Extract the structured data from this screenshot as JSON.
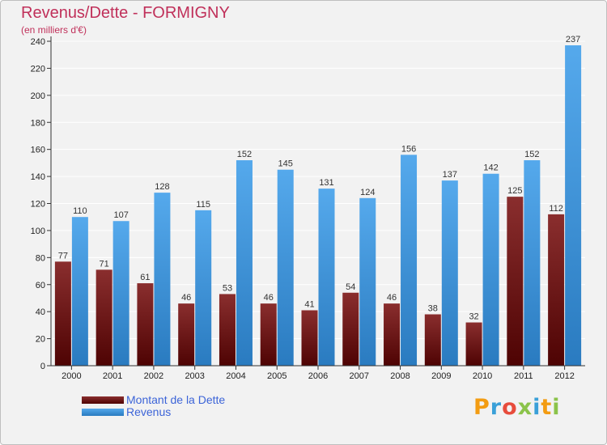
{
  "header": {
    "title": "Revenus/Dette - FORMIGNY",
    "subtitle": "(en milliers d'€)"
  },
  "chart_data": {
    "type": "bar",
    "title": "Revenus/Dette - FORMIGNY",
    "ylabel": "(en milliers d'€)",
    "xlabel": "",
    "ylim": [
      0,
      240
    ],
    "yticks": [
      0,
      20,
      40,
      60,
      80,
      100,
      120,
      140,
      160,
      180,
      200,
      220,
      240
    ],
    "grid": true,
    "legend_position": "bottom-left",
    "categories": [
      "2000",
      "2001",
      "2002",
      "2003",
      "2004",
      "2005",
      "2006",
      "2007",
      "2008",
      "2009",
      "2010",
      "2011",
      "2012"
    ],
    "series": [
      {
        "name": "Montant de la Dette",
        "color": "#6b0f0f",
        "values": [
          77,
          71,
          61,
          46,
          53,
          46,
          41,
          54,
          46,
          38,
          32,
          125,
          112
        ]
      },
      {
        "name": "Revenus",
        "color": "#3f95db",
        "values": [
          110,
          107,
          128,
          115,
          152,
          145,
          131,
          124,
          156,
          137,
          142,
          152,
          237
        ]
      }
    ]
  },
  "legend": {
    "items": [
      {
        "label": "Montant de la Dette",
        "color": "#6b0f0f"
      },
      {
        "label": "Revenus",
        "color": "#3f95db"
      }
    ]
  },
  "logo": {
    "text": "Proxiti",
    "colors": [
      "#f39c12",
      "#3aa0d8",
      "#e74c3c",
      "#8bc34a",
      "#3aa0d8",
      "#f39c12",
      "#8bc34a"
    ]
  }
}
